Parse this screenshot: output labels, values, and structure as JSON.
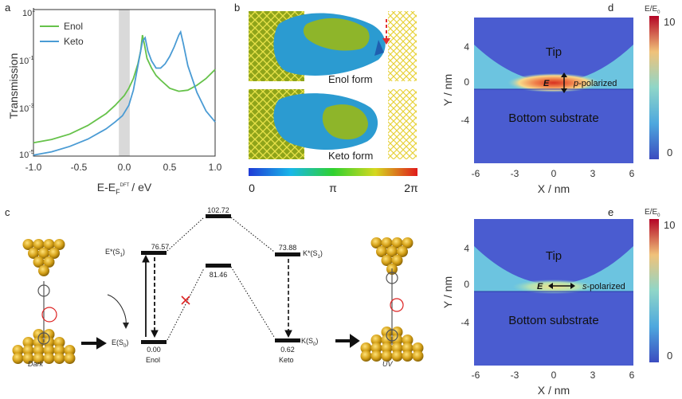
{
  "figure": {
    "panel_labels": {
      "a": "a",
      "b": "b",
      "c": "c",
      "d": "d",
      "e": "e"
    }
  },
  "panel_a": {
    "ylabel": "Transmission",
    "xlabel_main": "E-E",
    "xlabel_sub": "F",
    "xlabel_sup": "DFT",
    "xlabel_unit": "/ eV",
    "xticks": [
      "-1.0",
      "-0.5",
      "0.0",
      "0.5",
      "1.0"
    ],
    "yticks": [
      {
        "base": "10",
        "exp": "1"
      },
      {
        "base": "10",
        "exp": "-1"
      },
      {
        "base": "10",
        "exp": "-3"
      },
      {
        "base": "10",
        "exp": "-5"
      }
    ]
  },
  "chart_data": {
    "type": "line",
    "title": "",
    "xlabel": "E-E_F^DFT / eV",
    "ylabel": "Transmission",
    "xlim": [
      -1.0,
      1.0
    ],
    "ylim": [
      1e-05,
      10
    ],
    "yscale": "log",
    "legend_position": "top-left",
    "highlight_band": [
      -0.06,
      0.06
    ],
    "series": [
      {
        "name": "Enol",
        "color": "#66c24a",
        "x": [
          -1.0,
          -0.8,
          -0.6,
          -0.4,
          -0.2,
          -0.1,
          0.0,
          0.05,
          0.1,
          0.15,
          0.18,
          0.2,
          0.22,
          0.25,
          0.3,
          0.35,
          0.4,
          0.5,
          0.6,
          0.7,
          0.8,
          0.9,
          1.0
        ],
        "y": [
          3.5e-05,
          4.8e-05,
          8e-05,
          0.00018,
          0.00055,
          0.0012,
          0.003,
          0.006,
          0.015,
          0.06,
          0.2,
          0.9,
          0.4,
          0.1,
          0.04,
          0.02,
          0.013,
          0.006,
          0.0045,
          0.005,
          0.008,
          0.015,
          0.035
        ]
      },
      {
        "name": "Keto",
        "color": "#4a9bd4",
        "x": [
          -1.0,
          -0.8,
          -0.6,
          -0.4,
          -0.2,
          -0.1,
          -0.02,
          0.05,
          0.1,
          0.15,
          0.2,
          0.23,
          0.26,
          0.3,
          0.35,
          0.4,
          0.45,
          0.5,
          0.55,
          0.6,
          0.62,
          0.65,
          0.7,
          0.8,
          0.9,
          1.0
        ],
        "y": [
          1.1e-05,
          1.5e-05,
          2.5e-05,
          5e-05,
          0.00013,
          0.00025,
          0.00045,
          0.0012,
          0.005,
          0.05,
          0.5,
          0.7,
          0.2,
          0.08,
          0.04,
          0.04,
          0.06,
          0.12,
          0.3,
          0.9,
          1.2,
          0.4,
          0.05,
          0.004,
          0.0007,
          0.00025
        ]
      }
    ]
  },
  "panel_b": {
    "label_enol": "Enol form",
    "label_keto": "Keto form",
    "colorbar_ticks": [
      "0",
      "π",
      "2π"
    ]
  },
  "panel_c": {
    "levels": [
      {
        "id": "E",
        "label": "E(S",
        "sub": "0",
        "close": ")",
        "value": "0.00",
        "caption": "Enol"
      },
      {
        "id": "Estar",
        "label": "E*(S",
        "sub": "1",
        "close": ")",
        "value": "76.57"
      },
      {
        "id": "ts_top",
        "value": "102.72"
      },
      {
        "id": "ts_mid",
        "value": "81.46"
      },
      {
        "id": "Kstar",
        "label": "K*(S",
        "sub": "1",
        "close": ")",
        "value": "73.88"
      },
      {
        "id": "K",
        "label": "K(S",
        "sub": "0",
        "close": ")",
        "value": "0.62",
        "caption": "Keto"
      }
    ],
    "left_caption": "Dark",
    "right_caption": "UV"
  },
  "panel_d": {
    "title_colorbar": "E/E",
    "title_sub": "0",
    "tip_label": "Tip",
    "substrate_label": "Bottom substrate",
    "field_symbol": "E",
    "polarization_prefix": "p",
    "polarization_suffix": "-polarized",
    "xlabel": "X / nm",
    "ylabel": "Y / nm",
    "xticks": [
      "-6",
      "-3",
      "0",
      "3",
      "6"
    ],
    "yticks": [
      "4",
      "0",
      "-4"
    ],
    "colorbar_ticks": [
      "10",
      "0"
    ]
  },
  "panel_e": {
    "title_colorbar": "E/E",
    "title_sub": "0",
    "tip_label": "Tip",
    "substrate_label": "Bottom substrate",
    "field_symbol": "E",
    "polarization_prefix": "s",
    "polarization_suffix": "-polarized",
    "xlabel": "X / nm",
    "ylabel": "Y / nm",
    "xticks": [
      "-6",
      "-3",
      "0",
      "3",
      "6"
    ],
    "yticks": [
      "4",
      "0",
      "-4"
    ],
    "colorbar_ticks": [
      "10",
      "0"
    ]
  }
}
